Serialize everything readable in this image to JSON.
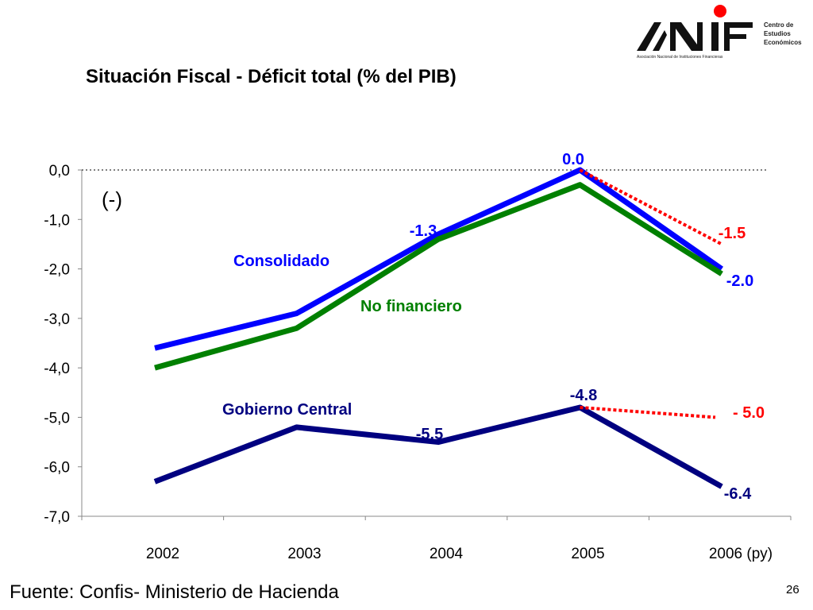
{
  "logo": {
    "name": "ANIF",
    "org_line": "Asociación Nacional de Instituciones Financieras",
    "center_lines": [
      "Centro de",
      "Estudios",
      "Económicos"
    ]
  },
  "title": "Situación Fiscal - Déficit total (% del PIB)",
  "source": "Fuente: Confis- Ministerio de Hacienda",
  "page_number": "26",
  "chart_data": {
    "type": "line",
    "title": "Situación Fiscal - Déficit total (% del PIB)",
    "sign_note": "(-)",
    "categories": [
      "2002",
      "2003",
      "2004",
      "2005",
      "2006 (py)"
    ],
    "yticks": [
      "0,0",
      "-1,0",
      "-2,0",
      "-3,0",
      "-4,0",
      "-5,0",
      "-6,0",
      "-7,0"
    ],
    "ylim": [
      -7,
      0
    ],
    "grid": false,
    "series": [
      {
        "name": "Consolidado",
        "color": "#0000ff",
        "values": [
          -3.6,
          -2.9,
          -1.3,
          0.0,
          -2.0
        ]
      },
      {
        "name": "No financiero",
        "color": "#008000",
        "values": [
          -4.0,
          -3.2,
          -1.4,
          -0.3,
          -2.1
        ]
      },
      {
        "name": "Gobierno Central",
        "color": "#000080",
        "values": [
          -6.3,
          -5.2,
          -5.5,
          -4.8,
          -6.4
        ]
      }
    ],
    "projections": [
      {
        "color": "#ff0000",
        "from": [
          3,
          0.0
        ],
        "to": [
          4,
          -1.5
        ]
      },
      {
        "color": "#ff0000",
        "from": [
          3,
          -4.8
        ],
        "to": [
          4,
          -5.0
        ]
      }
    ],
    "annotations": [
      {
        "text": "0.0",
        "color": "#0000ff",
        "x": 3,
        "y": 0.0
      },
      {
        "text": "-1.3",
        "color": "#0000ff",
        "x": 2,
        "y": -1.3
      },
      {
        "text": "-1.5",
        "color": "#ff0000",
        "x": 4,
        "y": -1.5
      },
      {
        "text": "-2.0",
        "color": "#0000ff",
        "x": 4,
        "y": -2.0
      },
      {
        "text": "-4.8",
        "color": "#000080",
        "x": 3,
        "y": -4.8
      },
      {
        "text": "- 5.0",
        "color": "#ff0000",
        "x": 4,
        "y": -5.0
      },
      {
        "text": "-5.5",
        "color": "#000080",
        "x": 2,
        "y": -5.5
      },
      {
        "text": "-6.4",
        "color": "#000080",
        "x": 4,
        "y": -6.4
      }
    ],
    "reference_line": {
      "y": 0.0,
      "style": "dotted",
      "color": "#000000"
    }
  }
}
